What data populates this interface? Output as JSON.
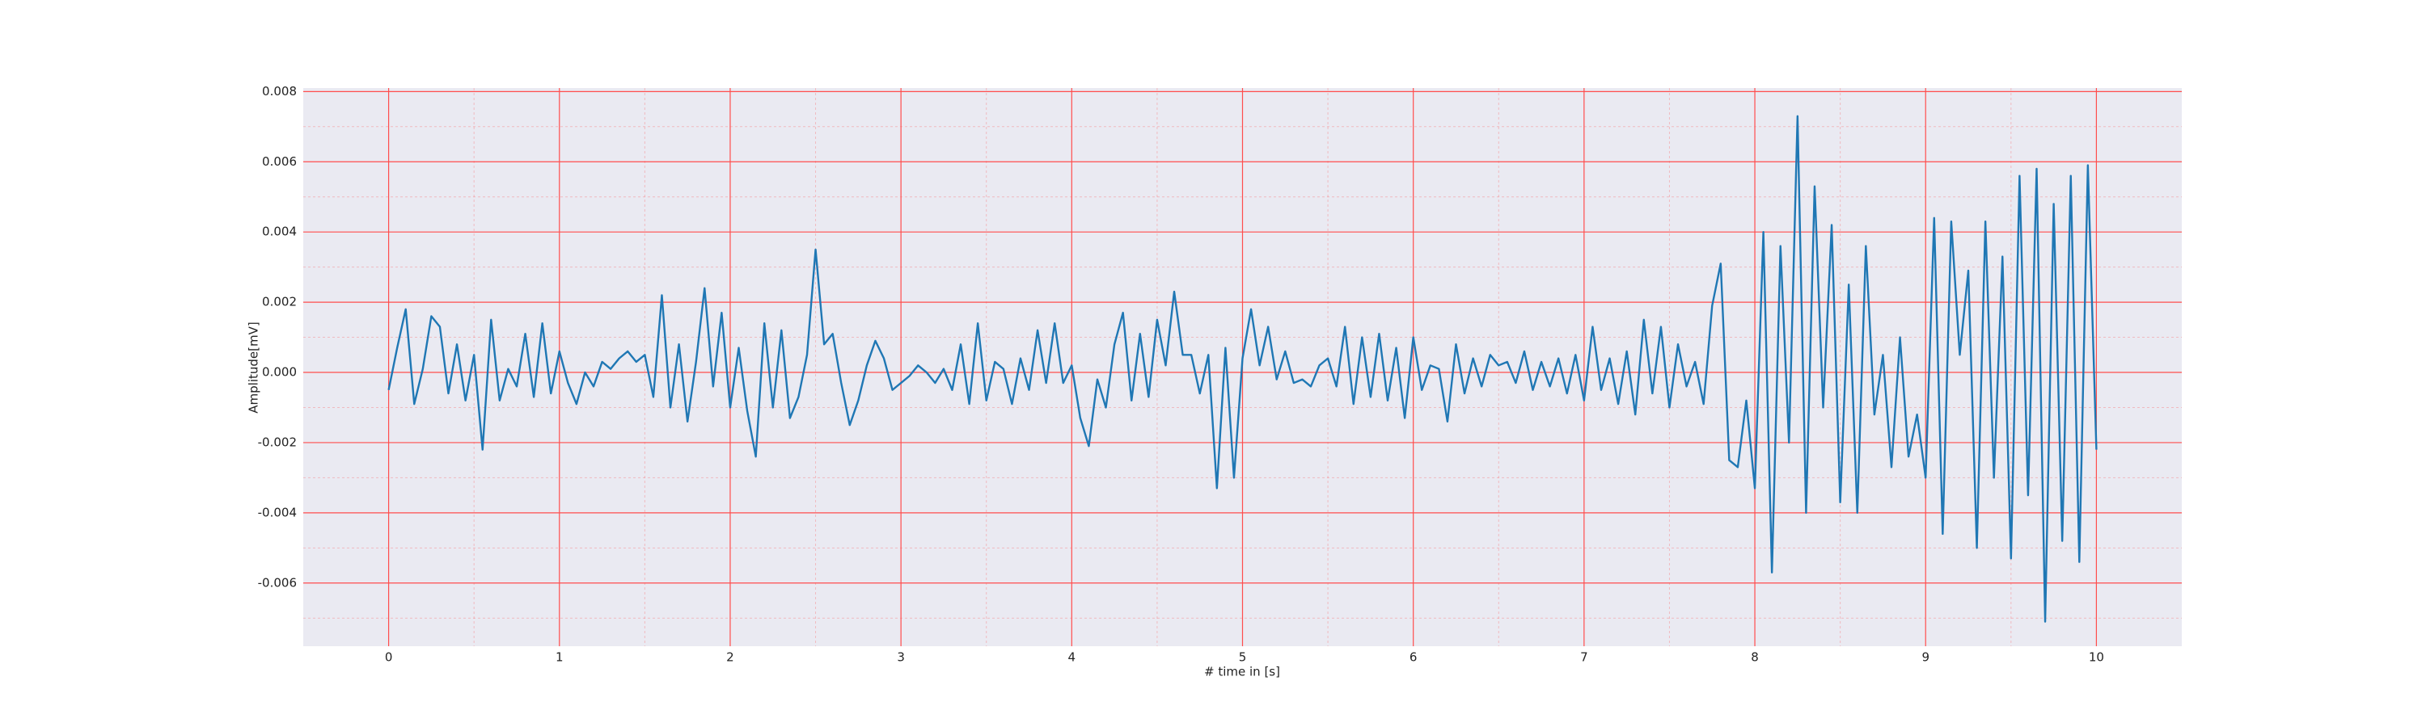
{
  "chart_data": {
    "type": "line",
    "xlabel": "# time in [s]",
    "ylabel": "Amplitude[mV]",
    "xlim": [
      -0.5,
      10.5
    ],
    "ylim": [
      -0.0078,
      0.0081
    ],
    "xticks": [
      0,
      1,
      2,
      3,
      4,
      5,
      6,
      7,
      8,
      9,
      10
    ],
    "yticks": [
      -0.006,
      -0.004,
      -0.002,
      {
        "value": 0,
        "label": "0.000"
      },
      0.002,
      0.004,
      0.006,
      0.008
    ],
    "xminorticks": [
      0.5,
      1.5,
      2.5,
      3.5,
      4.5,
      5.5,
      6.5,
      7.5,
      8.5,
      9.5
    ],
    "yminorticks": [
      -0.007,
      -0.005,
      -0.003,
      -0.001,
      0.001,
      0.003,
      0.005,
      0.007
    ],
    "grid": true,
    "grid_color": "#ff4d4d",
    "background": "#eaeaf2",
    "x": [
      0,
      0.05,
      0.1,
      0.15,
      0.2,
      0.25,
      0.3,
      0.35,
      0.4,
      0.45,
      0.5,
      0.55,
      0.6,
      0.65,
      0.7,
      0.75,
      0.8,
      0.85,
      0.9,
      0.95,
      1,
      1.05,
      1.1,
      1.15,
      1.2,
      1.25,
      1.3,
      1.35,
      1.4,
      1.45,
      1.5,
      1.55,
      1.6,
      1.65,
      1.7,
      1.75,
      1.8,
      1.85,
      1.9,
      1.95,
      2,
      2.05,
      2.1,
      2.15,
      2.2,
      2.25,
      2.3,
      2.35,
      2.4,
      2.45,
      2.5,
      2.55,
      2.6,
      2.65,
      2.7,
      2.75,
      2.8,
      2.85,
      2.9,
      2.95,
      3,
      3.05,
      3.1,
      3.15,
      3.2,
      3.25,
      3.3,
      3.35,
      3.4,
      3.45,
      3.5,
      3.55,
      3.6,
      3.65,
      3.7,
      3.75,
      3.8,
      3.85,
      3.9,
      3.95,
      4,
      4.05,
      4.1,
      4.15,
      4.2,
      4.25,
      4.3,
      4.35,
      4.4,
      4.45,
      4.5,
      4.55,
      4.6,
      4.65,
      4.7,
      4.75,
      4.8,
      4.85,
      4.9,
      4.95,
      5,
      5.05,
      5.1,
      5.15,
      5.2,
      5.25,
      5.3,
      5.35,
      5.4,
      5.45,
      5.5,
      5.55,
      5.6,
      5.65,
      5.7,
      5.75,
      5.8,
      5.85,
      5.9,
      5.95,
      6,
      6.05,
      6.1,
      6.15,
      6.2,
      6.25,
      6.3,
      6.35,
      6.4,
      6.45,
      6.5,
      6.55,
      6.6,
      6.65,
      6.7,
      6.75,
      6.8,
      6.85,
      6.9,
      6.95,
      7,
      7.05,
      7.1,
      7.15,
      7.2,
      7.25,
      7.3,
      7.35,
      7.4,
      7.45,
      7.5,
      7.55,
      7.6,
      7.65,
      7.7,
      7.75,
      7.8,
      7.85,
      7.9,
      7.95,
      8,
      8.05,
      8.1,
      8.15,
      8.2,
      8.25,
      8.3,
      8.35,
      8.4,
      8.45,
      8.5,
      8.55,
      8.6,
      8.65,
      8.7,
      8.75,
      8.8,
      8.85,
      8.9,
      8.95,
      9,
      9.05,
      9.1,
      9.15,
      9.2,
      9.25,
      9.3,
      9.35,
      9.4,
      9.45,
      9.5,
      9.55,
      9.6,
      9.65,
      9.7,
      9.75,
      9.8,
      9.85,
      9.9,
      9.95,
      10
    ],
    "series": [
      {
        "color": "#1f77b4",
        "values": [
          -0.0005,
          0.0007,
          0.0018,
          -0.0009,
          0.0001,
          0.0016,
          0.0013,
          -0.0006,
          0.0008,
          -0.0008,
          0.0005,
          -0.0022,
          0.0015,
          -0.0008,
          0.0001,
          -0.0004,
          0.0011,
          -0.0007,
          0.0014,
          -0.0006,
          0.0006,
          -0.0003,
          -0.0009,
          0,
          -0.0004,
          0.0003,
          0.0001,
          0.0004,
          0.0006,
          0.0003,
          0.0005,
          -0.0007,
          0.0022,
          -0.001,
          0.0008,
          -0.0014,
          0.0003,
          0.0024,
          -0.0004,
          0.0017,
          -0.001,
          0.0007,
          -0.0011,
          -0.0024,
          0.0014,
          -0.001,
          0.0012,
          -0.0013,
          -0.0007,
          0.0005,
          0.0035,
          0.0008,
          0.0011,
          -0.0003,
          -0.0015,
          -0.0008,
          0.0002,
          0.0009,
          0.0004,
          -0.0005,
          -0.0003,
          -0.0001,
          0.0002,
          0,
          -0.0003,
          0.0001,
          -0.0005,
          0.0008,
          -0.0009,
          0.0014,
          -0.0008,
          0.0003,
          0.0001,
          -0.0009,
          0.0004,
          -0.0005,
          0.0012,
          -0.0003,
          0.0014,
          -0.0003,
          0.0002,
          -0.0013,
          -0.0021,
          -0.0002,
          -0.001,
          0.0008,
          0.0017,
          -0.0008,
          0.0011,
          -0.0007,
          0.0015,
          0.0002,
          0.0023,
          0.0005,
          0.0005,
          -0.0006,
          0.0005,
          -0.0033,
          0.0007,
          -0.003,
          0.0004,
          0.0018,
          0.0002,
          0.0013,
          -0.0002,
          0.0006,
          -0.0003,
          -0.0002,
          -0.0004,
          0.0002,
          0.0004,
          -0.0004,
          0.0013,
          -0.0009,
          0.001,
          -0.0007,
          0.0011,
          -0.0008,
          0.0007,
          -0.0013,
          0.001,
          -0.0005,
          0.0002,
          0.0001,
          -0.0014,
          0.0008,
          -0.0006,
          0.0004,
          -0.0004,
          0.0005,
          0.0002,
          0.0003,
          -0.0003,
          0.0006,
          -0.0005,
          0.0003,
          -0.0004,
          0.0004,
          -0.0006,
          0.0005,
          -0.0008,
          0.0013,
          -0.0005,
          0.0004,
          -0.0009,
          0.0006,
          -0.0012,
          0.0015,
          -0.0006,
          0.0013,
          -0.001,
          0.0008,
          -0.0004,
          0.0003,
          -0.0009,
          0.0019,
          0.0031,
          -0.0025,
          -0.0027,
          -0.0008,
          -0.0033,
          0.004,
          -0.0057,
          0.0036,
          -0.002,
          0.0073,
          -0.004,
          0.0053,
          -0.001,
          0.0042,
          -0.0037,
          0.0025,
          -0.004,
          0.0036,
          -0.0012,
          0.0005,
          -0.0027,
          0.001,
          -0.0024,
          -0.0012,
          -0.003,
          0.0044,
          -0.0046,
          0.0043,
          0.0005,
          0.0029,
          -0.005,
          0.0043,
          -0.003,
          0.0033,
          -0.0053,
          0.0056,
          -0.0035,
          0.0058,
          -0.0071,
          0.0048,
          -0.0048,
          0.0056,
          -0.0054,
          0.0059,
          -0.0022
        ]
      }
    ]
  }
}
